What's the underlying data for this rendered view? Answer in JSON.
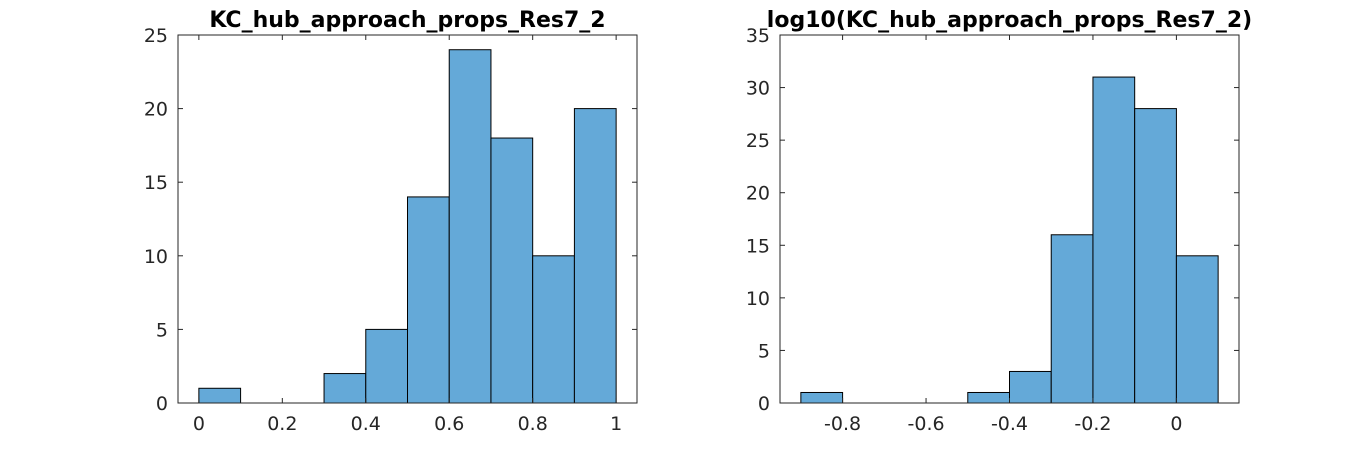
{
  "chart_data": [
    {
      "type": "bar",
      "title": "KC_hub_approach_props_Res7_2",
      "xlabel": "",
      "ylabel": "",
      "bin_edges": [
        0,
        0.1,
        0.2,
        0.3,
        0.4,
        0.5,
        0.6,
        0.7,
        0.8,
        0.9,
        1.0
      ],
      "values": [
        1,
        0,
        0,
        2,
        5,
        14,
        24,
        18,
        10,
        20
      ],
      "xlim": [
        -0.05,
        1.05
      ],
      "ylim": [
        0,
        25
      ],
      "xticks": [
        0,
        0.2,
        0.4,
        0.6,
        0.8,
        1
      ],
      "xtick_labels": [
        "0",
        "0.2",
        "0.4",
        "0.6",
        "0.8",
        "1"
      ],
      "yticks": [
        0,
        5,
        10,
        15,
        20,
        25
      ],
      "ytick_labels": [
        "0",
        "5",
        "10",
        "15",
        "20",
        "25"
      ],
      "bar_color": "#64a9d8",
      "grid": false
    },
    {
      "type": "bar",
      "title": "log10(KC_hub_approach_props_Res7_2)",
      "xlabel": "",
      "ylabel": "",
      "bin_edges": [
        -0.9,
        -0.8,
        -0.7,
        -0.6,
        -0.5,
        -0.4,
        -0.3,
        -0.2,
        -0.1,
        0.0,
        0.1
      ],
      "values": [
        1,
        0,
        0,
        0,
        1,
        3,
        16,
        31,
        28,
        14
      ],
      "xlim": [
        -0.95,
        0.15
      ],
      "ylim": [
        0,
        35
      ],
      "xticks": [
        -0.8,
        -0.6,
        -0.4,
        -0.2,
        0
      ],
      "xtick_labels": [
        "-0.8",
        "-0.6",
        "-0.4",
        "-0.2",
        "0"
      ],
      "yticks": [
        0,
        5,
        10,
        15,
        20,
        25,
        30,
        35
      ],
      "ytick_labels": [
        "0",
        "5",
        "10",
        "15",
        "20",
        "25",
        "30",
        "35"
      ],
      "bar_color": "#64a9d8",
      "grid": false
    }
  ]
}
